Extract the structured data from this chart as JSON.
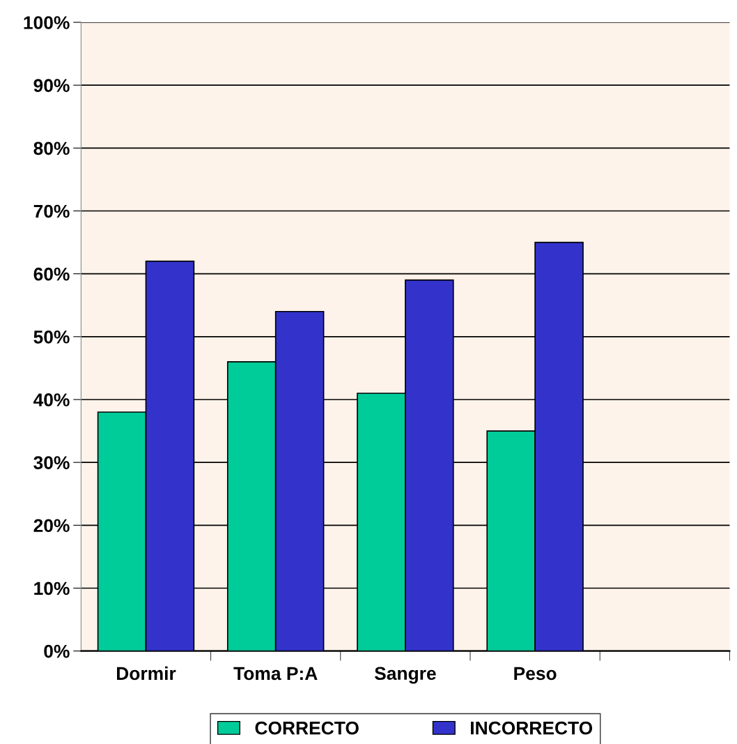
{
  "chart_data": {
    "type": "bar",
    "categories": [
      "Dormir",
      "Toma P:A",
      "Sangre",
      "Peso",
      null
    ],
    "series": [
      {
        "name": "CORRECTO",
        "color": "#00cc99",
        "values": [
          38,
          46,
          41,
          35,
          null
        ]
      },
      {
        "name": "INCORRECTO",
        "color": "#3333cc",
        "values": [
          62,
          54,
          59,
          65,
          null
        ]
      }
    ],
    "ylim": [
      0,
      100
    ],
    "yticks": [
      {
        "value": 0,
        "label": "0%"
      },
      {
        "value": 10,
        "label": "10%"
      },
      {
        "value": 20,
        "label": "20%"
      },
      {
        "value": 30,
        "label": "30%"
      },
      {
        "value": 40,
        "label": "40%"
      },
      {
        "value": 50,
        "label": "50%"
      },
      {
        "value": 60,
        "label": "60%"
      },
      {
        "value": 70,
        "label": "70%"
      },
      {
        "value": 80,
        "label": "80%"
      },
      {
        "value": 90,
        "label": "90%"
      },
      {
        "value": 100,
        "label": "100%"
      }
    ],
    "grid": "y",
    "legend": "bottom"
  }
}
